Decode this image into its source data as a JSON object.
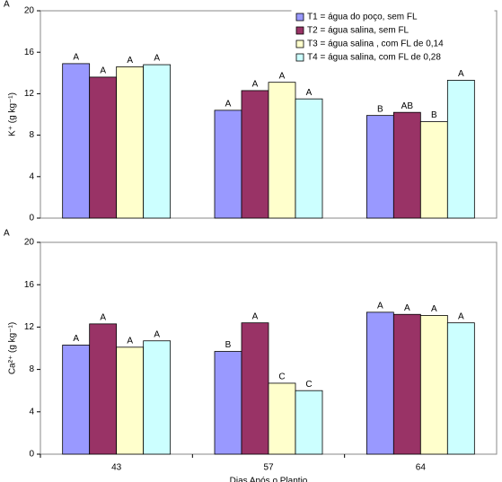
{
  "chart_data": [
    {
      "type": "bar",
      "panel_label": "A",
      "y_label": "K⁺ (g kg⁻¹)",
      "ylim": [
        0,
        20
      ],
      "yticks": [
        0,
        4,
        8,
        12,
        16,
        20
      ],
      "series": [
        {
          "name": "T1 = água do poço, sem FL",
          "color": "#9999ff",
          "values": [
            14.9,
            10.4,
            9.9
          ],
          "letters": [
            "A",
            "A",
            "B"
          ]
        },
        {
          "name": "T2 = água salina, sem FL",
          "color": "#993366",
          "values": [
            13.6,
            12.3,
            10.2
          ],
          "letters": [
            "A",
            "A",
            "AB"
          ]
        },
        {
          "name": "T3 = água salina , com FL de 0,14",
          "color": "#ffffcc",
          "values": [
            14.6,
            13.1,
            9.3
          ],
          "letters": [
            "A",
            "A",
            "B"
          ]
        },
        {
          "name": "T4 = água salina, com FL de 0,28",
          "color": "#ccffff",
          "values": [
            14.8,
            11.5,
            13.3
          ],
          "letters": [
            "A",
            "A",
            "A"
          ]
        }
      ]
    },
    {
      "type": "bar",
      "panel_label": "A",
      "y_label": "Ca²⁺ (g kg⁻¹)",
      "x_label": "Dias Após o Plantio",
      "categories": [
        "43",
        "57",
        "64"
      ],
      "ylim": [
        0,
        20
      ],
      "yticks": [
        0,
        4,
        8,
        12,
        16,
        20
      ],
      "series": [
        {
          "color": "#9999ff",
          "values": [
            10.3,
            9.7,
            13.4
          ],
          "letters": [
            "A",
            "B",
            "A"
          ]
        },
        {
          "color": "#993366",
          "values": [
            12.3,
            12.4,
            13.2
          ],
          "letters": [
            "A",
            "A",
            "A"
          ]
        },
        {
          "color": "#ffffcc",
          "values": [
            10.1,
            6.7,
            13.1
          ],
          "letters": [
            "A",
            "C",
            "A"
          ]
        },
        {
          "color": "#ccffff",
          "values": [
            10.7,
            6.0,
            12.4
          ],
          "letters": [
            "A",
            "C",
            "A"
          ]
        }
      ]
    }
  ]
}
